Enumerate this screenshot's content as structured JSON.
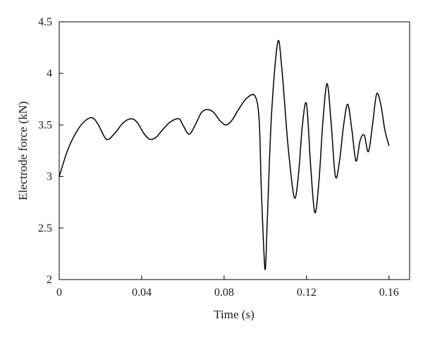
{
  "chart_data": {
    "type": "line",
    "title": "",
    "xlabel": "Time (s)",
    "ylabel": "Electrode force (kN)",
    "xlim": [
      0,
      0.17
    ],
    "ylim": [
      2,
      4.5
    ],
    "x_ticks": [
      0,
      0.04,
      0.08,
      0.12,
      0.16
    ],
    "x_tick_labels": [
      "0",
      "0.04",
      "0.08",
      "0.12",
      "0.16"
    ],
    "y_ticks": [
      2,
      2.5,
      3,
      3.5,
      4,
      4.5
    ],
    "y_tick_labels": [
      "2",
      "2.5",
      "3",
      "3.5",
      "4",
      "4.5"
    ],
    "grid": false,
    "legend": "none",
    "line_color": "#000000",
    "series": [
      {
        "x": [
          0,
          0.004,
          0.008,
          0.012,
          0.016,
          0.019,
          0.023,
          0.027,
          0.031,
          0.035,
          0.038,
          0.041,
          0.044,
          0.047,
          0.05,
          0.054,
          0.058,
          0.06,
          0.063,
          0.066,
          0.069,
          0.072,
          0.075,
          0.078,
          0.081,
          0.084,
          0.087,
          0.091,
          0.095,
          0.097,
          0.098,
          0.099,
          0.1,
          0.101,
          0.103,
          0.106,
          0.108,
          0.111,
          0.114,
          0.116,
          0.118,
          0.12,
          0.122,
          0.124,
          0.126,
          0.128,
          0.13,
          0.132,
          0.134,
          0.136,
          0.138,
          0.14,
          0.142,
          0.144,
          0.146,
          0.148,
          0.15,
          0.152,
          0.154,
          0.156,
          0.158,
          0.16
        ],
        "y": [
          3.0,
          3.25,
          3.42,
          3.53,
          3.57,
          3.5,
          3.36,
          3.42,
          3.52,
          3.56,
          3.52,
          3.42,
          3.36,
          3.38,
          3.45,
          3.53,
          3.56,
          3.5,
          3.41,
          3.5,
          3.62,
          3.65,
          3.62,
          3.54,
          3.5,
          3.55,
          3.65,
          3.76,
          3.78,
          3.55,
          2.9,
          2.4,
          2.1,
          2.6,
          3.6,
          4.3,
          4.05,
          3.3,
          2.8,
          3.0,
          3.5,
          3.7,
          3.1,
          2.65,
          2.95,
          3.55,
          3.9,
          3.5,
          3.0,
          3.15,
          3.5,
          3.7,
          3.45,
          3.15,
          3.35,
          3.4,
          3.24,
          3.5,
          3.8,
          3.7,
          3.45,
          3.3
        ]
      }
    ]
  }
}
